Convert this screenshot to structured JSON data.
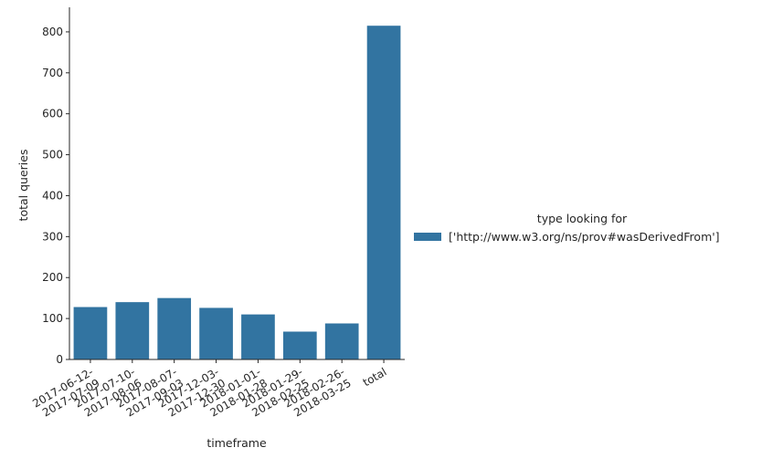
{
  "chart_data": {
    "type": "bar",
    "title": "",
    "xlabel": "timeframe",
    "ylabel": "total queries",
    "ylim": [
      0,
      860
    ],
    "yticks": [
      0,
      100,
      200,
      300,
      400,
      500,
      600,
      700,
      800
    ],
    "categories": [
      "2017-06-12-\n2017-07-09",
      "2017-07-10-\n2017-08-06",
      "2017-08-07-\n2017-09-03",
      "2017-12-03-\n2017-12-30",
      "2018-01-01-\n2018-01-28",
      "2018-01-29-\n2018-02-25",
      "2018-02-26-\n2018-03-25",
      "total"
    ],
    "series": [
      {
        "name": "['http://www.w3.org/ns/prov#wasDerivedFrom']",
        "color": "#3274a1",
        "values": [
          128,
          140,
          150,
          126,
          110,
          68,
          88,
          815
        ]
      }
    ],
    "grid": false,
    "legend": {
      "title": "type looking for",
      "placement": "center-right"
    }
  }
}
